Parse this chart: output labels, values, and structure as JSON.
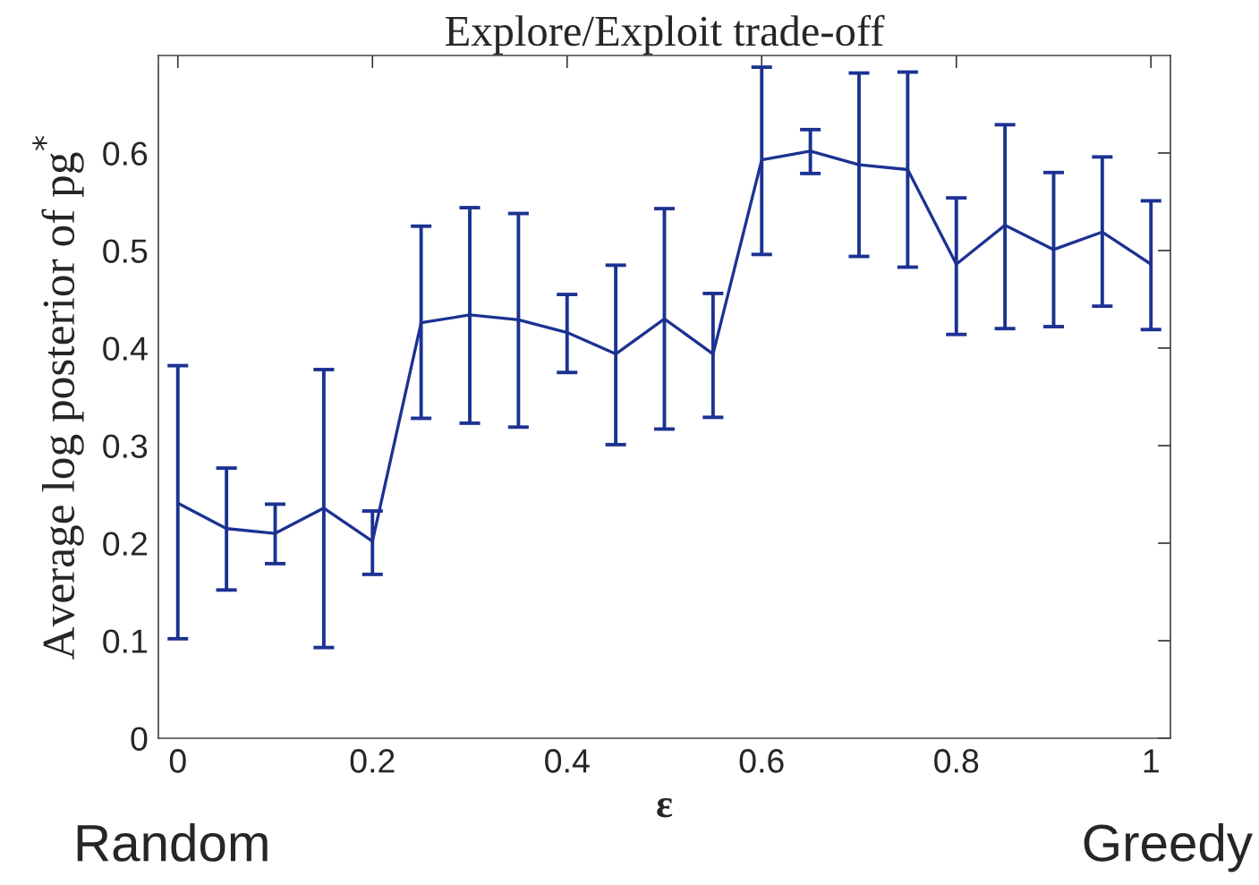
{
  "chart_data": {
    "type": "line",
    "title": "Explore/Exploit trade-off",
    "xlabel": "ε",
    "ylabel": "Average log posterior of pg$^{*}$",
    "x": [
      0,
      0.05,
      0.1,
      0.15,
      0.2,
      0.25,
      0.3,
      0.35,
      0.4,
      0.45,
      0.5,
      0.55,
      0.6,
      0.65,
      0.7,
      0.75,
      0.8,
      0.85,
      0.9,
      0.95,
      1
    ],
    "series": [
      {
        "color": "#1c3292",
        "values": [
          0.241,
          0.215,
          0.21,
          0.236,
          0.202,
          0.426,
          0.434,
          0.429,
          0.416,
          0.394,
          0.43,
          0.394,
          0.593,
          0.602,
          0.588,
          0.583,
          0.486,
          0.526,
          0.501,
          0.519,
          0.486
        ],
        "errors": [
          [
            0.102,
            0.382
          ],
          [
            0.152,
            0.277
          ],
          [
            0.179,
            0.24
          ],
          [
            0.093,
            0.378
          ],
          [
            0.168,
            0.233
          ],
          [
            0.328,
            0.525
          ],
          [
            0.323,
            0.544
          ],
          [
            0.319,
            0.538
          ],
          [
            0.375,
            0.455
          ],
          [
            0.301,
            0.485
          ],
          [
            0.317,
            0.543
          ],
          [
            0.329,
            0.456
          ],
          [
            0.496,
            0.688
          ],
          [
            0.579,
            0.624
          ],
          [
            0.494,
            0.682
          ],
          [
            0.483,
            0.683
          ],
          [
            0.414,
            0.554
          ],
          [
            0.42,
            0.629
          ],
          [
            0.422,
            0.58
          ],
          [
            0.443,
            0.596
          ],
          [
            0.419,
            0.551
          ]
        ]
      }
    ],
    "xlim": [
      -0.02,
      1.02
    ],
    "ylim": [
      0,
      0.7
    ],
    "xticks": [
      0,
      0.2,
      0.4,
      0.6,
      0.8,
      1
    ],
    "yticks": [
      0,
      0.1,
      0.2,
      0.3,
      0.4,
      0.5,
      0.6
    ],
    "line_style": "solid",
    "annotations": [
      "Random",
      "Greedy"
    ]
  }
}
